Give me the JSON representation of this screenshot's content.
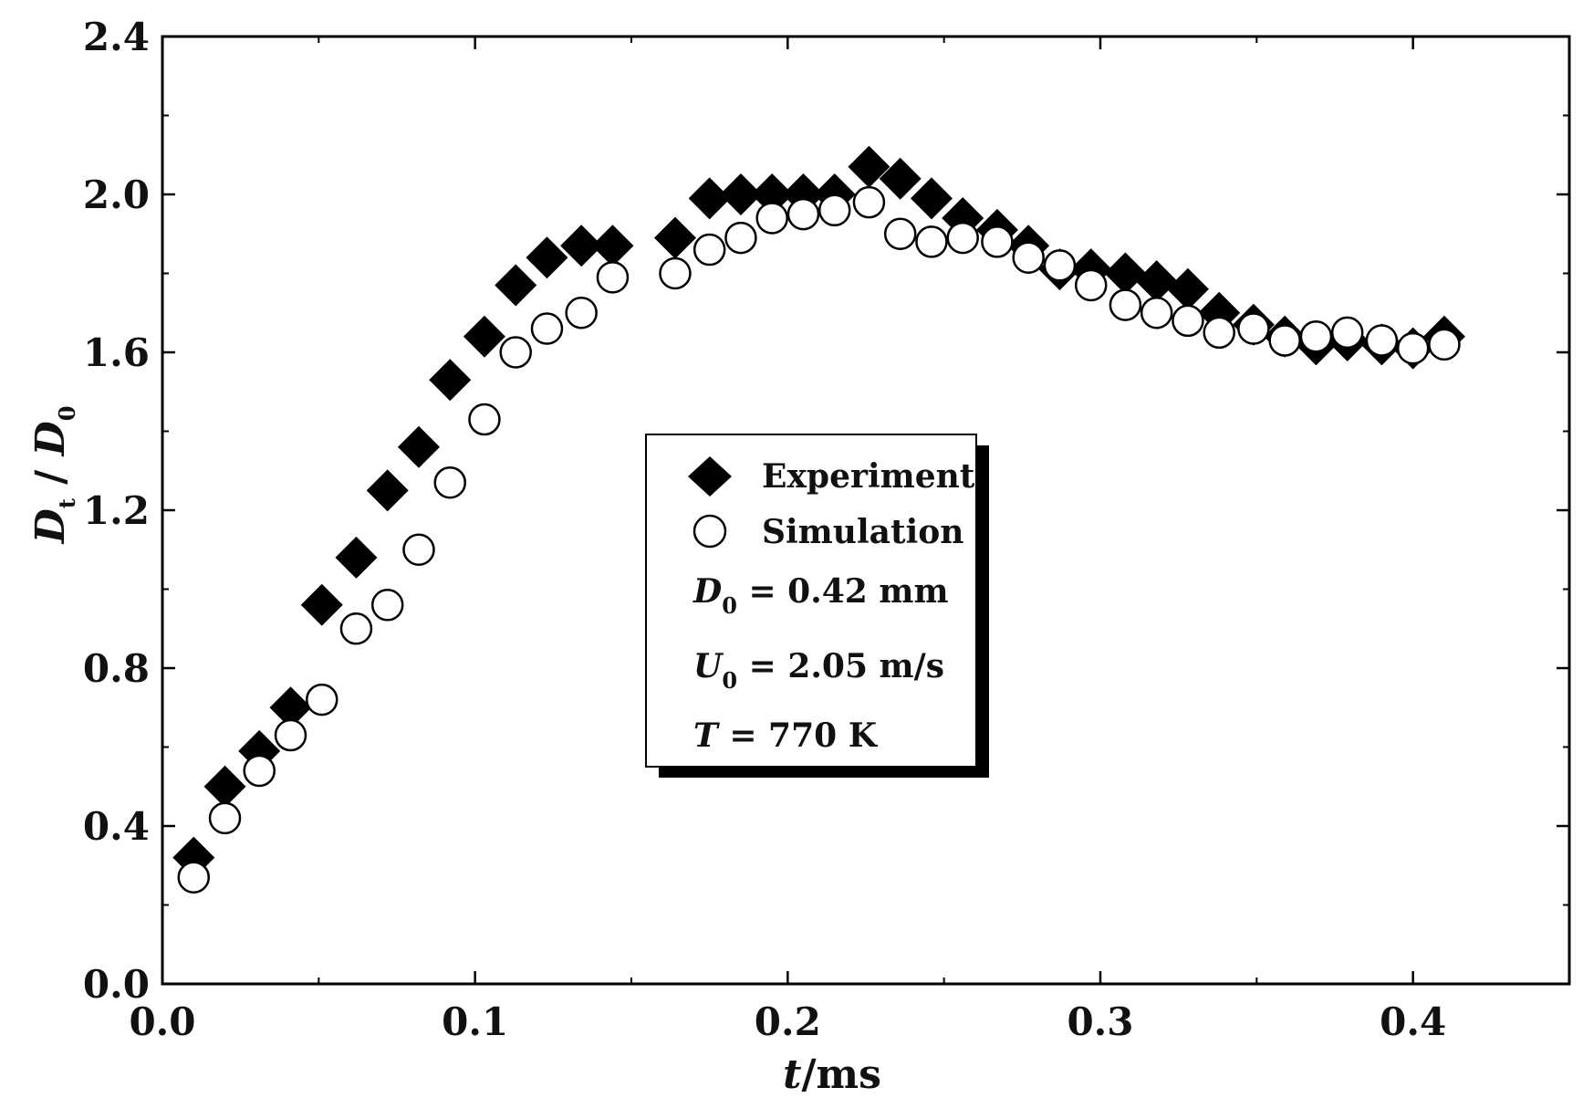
{
  "chart_data": {
    "type": "scatter",
    "title": "",
    "xlabel": {
      "var": "t",
      "unit": "/ms"
    },
    "ylabel": {
      "var1": "D",
      "sub1": "t",
      "sep": " / ",
      "var2": "D",
      "sub2": "0"
    },
    "xlim": [
      0.0,
      0.45
    ],
    "ylim": [
      0.0,
      2.4
    ],
    "xticks": [
      0.0,
      0.1,
      0.2,
      0.3,
      0.4
    ],
    "xtick_labels": [
      "0.0",
      "0.1",
      "0.2",
      "0.3",
      "0.4"
    ],
    "yticks": [
      0.0,
      0.4,
      0.8,
      1.2,
      1.6,
      2.0,
      2.4
    ],
    "ytick_labels": [
      "0.0",
      "0.4",
      "0.8",
      "1.2",
      "1.6",
      "2.0",
      "2.4"
    ],
    "grid": false,
    "legend_position": "center",
    "series": [
      {
        "name": "Experiment",
        "marker": "filled-diamond",
        "color": "#000000",
        "x": [
          0.01,
          0.02,
          0.031,
          0.041,
          0.051,
          0.062,
          0.072,
          0.082,
          0.092,
          0.103,
          0.113,
          0.123,
          0.134,
          0.144,
          0.164,
          0.175,
          0.185,
          0.195,
          0.205,
          0.215,
          0.226,
          0.236,
          0.246,
          0.256,
          0.267,
          0.277,
          0.287,
          0.297,
          0.308,
          0.318,
          0.328,
          0.338,
          0.349,
          0.359,
          0.369,
          0.379,
          0.39,
          0.4,
          0.41
        ],
        "y": [
          0.32,
          0.5,
          0.59,
          0.7,
          0.96,
          1.08,
          1.25,
          1.36,
          1.53,
          1.64,
          1.77,
          1.84,
          1.87,
          1.87,
          1.89,
          1.99,
          2.0,
          2.0,
          2.0,
          2.0,
          2.07,
          2.04,
          1.99,
          1.94,
          1.91,
          1.87,
          1.81,
          1.81,
          1.8,
          1.78,
          1.76,
          1.7,
          1.67,
          1.64,
          1.62,
          1.63,
          1.62,
          1.61,
          1.64
        ]
      },
      {
        "name": "Simulation",
        "marker": "open-circle",
        "color": "#000000",
        "x": [
          0.01,
          0.02,
          0.031,
          0.041,
          0.051,
          0.062,
          0.072,
          0.082,
          0.092,
          0.103,
          0.113,
          0.123,
          0.134,
          0.144,
          0.164,
          0.175,
          0.185,
          0.195,
          0.205,
          0.215,
          0.226,
          0.236,
          0.246,
          0.256,
          0.267,
          0.277,
          0.287,
          0.297,
          0.308,
          0.318,
          0.328,
          0.338,
          0.349,
          0.359,
          0.369,
          0.379,
          0.39,
          0.4,
          0.41
        ],
        "y": [
          0.27,
          0.42,
          0.54,
          0.63,
          0.72,
          0.9,
          0.96,
          1.1,
          1.27,
          1.43,
          1.6,
          1.66,
          1.7,
          1.79,
          1.8,
          1.86,
          1.89,
          1.94,
          1.95,
          1.96,
          1.98,
          1.9,
          1.88,
          1.89,
          1.88,
          1.84,
          1.82,
          1.77,
          1.72,
          1.7,
          1.68,
          1.65,
          1.66,
          1.63,
          1.64,
          1.65,
          1.63,
          1.61,
          1.62
        ]
      }
    ],
    "legend": {
      "entries": [
        "Experiment",
        "Simulation"
      ],
      "annotations": [
        {
          "var": "D",
          "sub": "0",
          "text": " = 0.42 mm"
        },
        {
          "var": "U",
          "sub": "0",
          "text": " = 2.05 m/s"
        },
        {
          "var": "T",
          "sub": "",
          "text": "  = 770 K"
        }
      ]
    }
  }
}
